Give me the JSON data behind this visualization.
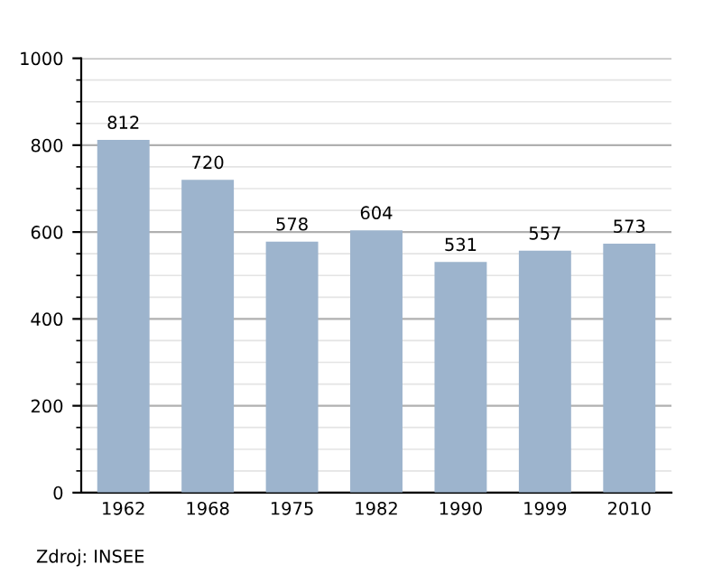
{
  "chart_data": {
    "type": "bar",
    "categories": [
      "1962",
      "1968",
      "1975",
      "1982",
      "1990",
      "1999",
      "2010"
    ],
    "values": [
      812,
      720,
      578,
      604,
      531,
      557,
      573
    ],
    "color": "#9db4cd",
    "ylim": [
      0,
      1000
    ],
    "yticks": [
      0,
      200,
      400,
      600,
      800,
      1000
    ],
    "grid": "y",
    "data_labels": true,
    "legend": false,
    "annotations": [
      "Zdroj: INSEE"
    ]
  }
}
